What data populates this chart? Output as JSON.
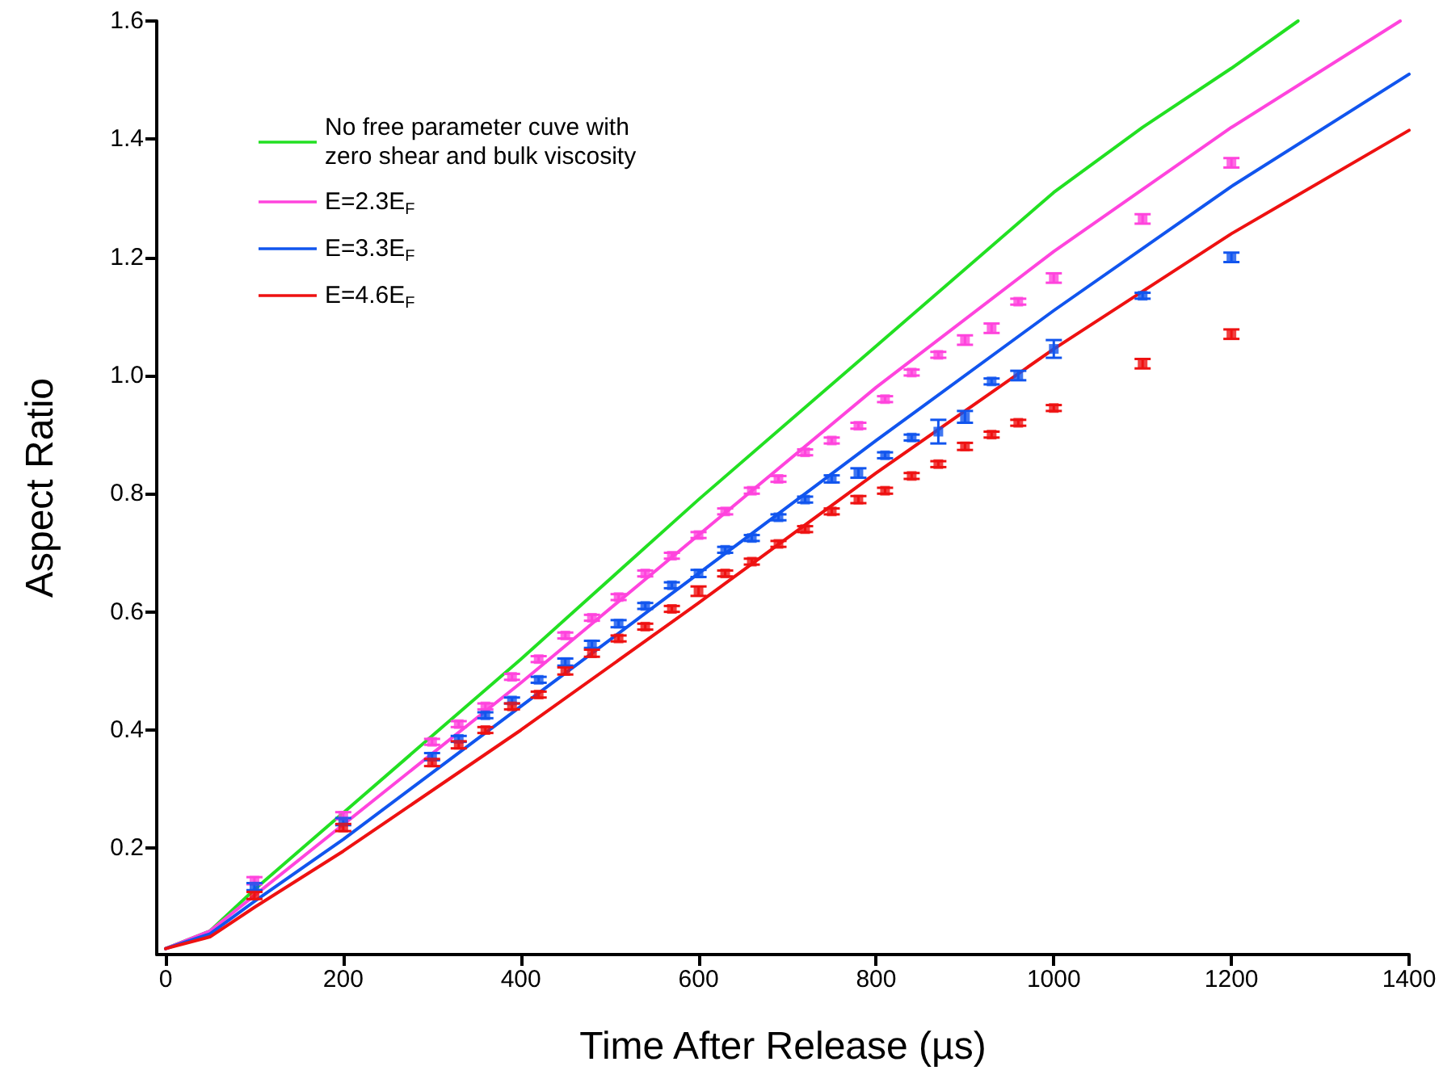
{
  "chart_data": {
    "type": "scatter",
    "xlabel": "Time After Release (µs)",
    "ylabel": "Aspect Ratio",
    "x": [
      100,
      200,
      300,
      330,
      360,
      390,
      420,
      450,
      480,
      510,
      540,
      570,
      600,
      630,
      660,
      690,
      720,
      750,
      780,
      810,
      840,
      870,
      900,
      930,
      960,
      1000,
      1100,
      1200
    ],
    "xlim": [
      -10,
      1400
    ],
    "xticks": [
      0,
      200,
      400,
      600,
      800,
      1000,
      1200,
      1400
    ],
    "ylim": [
      0.02,
      1.6
    ],
    "yticks": [
      {
        "value": 0.2,
        "label": "0.2"
      },
      {
        "value": 0.4,
        "label": "0.4"
      },
      {
        "value": 0.6,
        "label": "0.6"
      },
      {
        "value": 0.8,
        "label": "0.8"
      },
      {
        "value": 1,
        "label": "1.0"
      },
      {
        "value": 1.2,
        "label": "1.2"
      },
      {
        "value": 1.4,
        "label": "1.4"
      },
      {
        "value": 1.6,
        "label": "1.6"
      }
    ],
    "grid": false,
    "legend": "top left",
    "series": [
      {
        "name": "No free parameter cuve with zero shear and bulk viscosity",
        "type": "line",
        "marker": "none",
        "color": "#22e022",
        "x": [
          0,
          50,
          100,
          200,
          300,
          400,
          600,
          800,
          1000,
          1100,
          1200,
          1275
        ],
        "values": [
          0.03,
          0.06,
          0.13,
          0.26,
          0.39,
          0.52,
          0.79,
          1.05,
          1.31,
          1.42,
          1.52,
          1.6
        ]
      },
      {
        "name": "E=2.3E$_{F}$",
        "type": "line",
        "marker": "none",
        "color": "#ff44dd",
        "x": [
          0,
          50,
          100,
          200,
          400,
          600,
          800,
          1000,
          1200,
          1390
        ],
        "values": [
          0.03,
          0.06,
          0.12,
          0.24,
          0.48,
          0.73,
          0.98,
          1.21,
          1.42,
          1.6
        ]
      },
      {
        "name": "E=3.3E$_{F}$",
        "type": "line",
        "marker": "none",
        "color": "#1155ee",
        "x": [
          0,
          50,
          100,
          200,
          400,
          600,
          800,
          1000,
          1200,
          1400
        ],
        "values": [
          0.03,
          0.055,
          0.11,
          0.215,
          0.44,
          0.665,
          0.89,
          1.11,
          1.32,
          1.51
        ]
      },
      {
        "name": "E=4.6E$_{F}$",
        "type": "line",
        "marker": "none",
        "color": "#ee1111",
        "x": [
          0,
          50,
          100,
          200,
          400,
          600,
          800,
          1000,
          1200,
          1400
        ],
        "values": [
          0.03,
          0.05,
          0.1,
          0.195,
          0.4,
          0.615,
          0.835,
          1.045,
          1.24,
          1.415
        ]
      },
      {
        "marker": "square",
        "color": "#ff44dd",
        "values": [
          0.145,
          0.255,
          0.38,
          0.41,
          0.44,
          0.49,
          0.52,
          0.56,
          0.59,
          0.625,
          0.665,
          0.695,
          0.73,
          0.77,
          0.805,
          0.825,
          0.87,
          0.89,
          0.915,
          0.96,
          1.005,
          1.035,
          1.06,
          1.08,
          1.125,
          1.165,
          1.265,
          1.36
        ],
        "errors": [
          0.006,
          0.006,
          0.005,
          0.005,
          0.005,
          0.005,
          0.005,
          0.005,
          0.005,
          0.005,
          0.005,
          0.005,
          0.005,
          0.005,
          0.005,
          0.005,
          0.005,
          0.005,
          0.005,
          0.005,
          0.005,
          0.005,
          0.008,
          0.008,
          0.005,
          0.008,
          0.008,
          0.008
        ]
      },
      {
        "marker": "square",
        "color": "#1155ee",
        "values": [
          0.135,
          0.245,
          0.355,
          0.385,
          0.425,
          0.45,
          0.485,
          0.515,
          0.545,
          0.58,
          0.61,
          0.645,
          0.665,
          0.705,
          0.725,
          0.76,
          0.79,
          0.825,
          0.835,
          0.865,
          0.895,
          0.905,
          0.93,
          0.99,
          1.0,
          1.045,
          1.135,
          1.2
        ],
        "errors": [
          0.006,
          0.006,
          0.006,
          0.005,
          0.005,
          0.005,
          0.005,
          0.006,
          0.006,
          0.006,
          0.005,
          0.005,
          0.006,
          0.005,
          0.005,
          0.005,
          0.005,
          0.006,
          0.008,
          0.005,
          0.005,
          0.02,
          0.01,
          0.005,
          0.008,
          0.015,
          0.005,
          0.008
        ]
      },
      {
        "marker": "square",
        "color": "#ee1111",
        "values": [
          0.12,
          0.235,
          0.345,
          0.375,
          0.4,
          0.44,
          0.46,
          0.5,
          0.53,
          0.555,
          0.575,
          0.605,
          0.635,
          0.665,
          0.685,
          0.715,
          0.74,
          0.77,
          0.79,
          0.805,
          0.83,
          0.85,
          0.88,
          0.9,
          0.92,
          0.945,
          1.02,
          1.07
        ],
        "errors": [
          0.006,
          0.006,
          0.006,
          0.006,
          0.005,
          0.005,
          0.005,
          0.006,
          0.006,
          0.005,
          0.005,
          0.005,
          0.008,
          0.005,
          0.005,
          0.005,
          0.005,
          0.005,
          0.006,
          0.005,
          0.005,
          0.005,
          0.006,
          0.005,
          0.005,
          0.005,
          0.008,
          0.008
        ]
      }
    ]
  }
}
